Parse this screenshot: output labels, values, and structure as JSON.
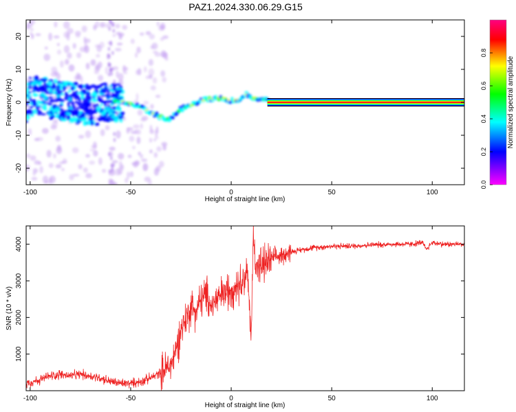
{
  "title": "PAZ1.2024.330.06.29.G15",
  "chart_data": [
    {
      "type": "heatmap",
      "xlabel": "Height of straight line (km)",
      "ylabel": "Frequency (Hz)",
      "xlim": [
        -102,
        116
      ],
      "ylim": [
        -25,
        25
      ],
      "xticks": [
        -100,
        -50,
        0,
        50,
        100
      ],
      "yticks": [
        -20,
        -10,
        0,
        10,
        20
      ],
      "colorbar": {
        "label": "Normalized spectral amplitude",
        "ticks": [
          "0.0",
          "0.2",
          "0.4",
          "0.6",
          "0.8"
        ],
        "range": [
          0,
          1
        ],
        "colors": [
          "#ff00ff",
          "#0000ff",
          "#00ffff",
          "#00ff00",
          "#ffff00",
          "#ff0000",
          "#ff0080"
        ]
      },
      "ridge": {
        "x": [
          -100,
          -90,
          -80,
          -70,
          -60,
          -55,
          -50,
          -45,
          -40,
          -35,
          -32,
          -28,
          -25,
          -20,
          -15,
          -10,
          -5,
          0,
          5,
          8,
          10,
          15,
          20,
          30,
          50,
          70,
          90,
          100,
          116
        ],
        "y": [
          2,
          1,
          0,
          -1,
          0,
          0.5,
          -0.5,
          -1.5,
          -3,
          -4.5,
          -5.5,
          -4,
          -2,
          -1,
          0.5,
          1,
          1.5,
          0.5,
          1,
          2.5,
          1.5,
          1,
          0.5,
          0,
          0,
          0,
          0,
          0,
          0
        ]
      }
    },
    {
      "type": "line",
      "xlabel": "Height of straight line (km)",
      "ylabel": "SNR (10 * v/v)",
      "xlim": [
        -102,
        116
      ],
      "ylim": [
        0,
        4500
      ],
      "xticks": [
        -100,
        -50,
        0,
        50,
        100
      ],
      "yticks": [
        1000,
        2000,
        3000,
        4000
      ],
      "color": "#ee2222",
      "series": [
        {
          "x": [
            -102,
            -95,
            -90,
            -85,
            -80,
            -75,
            -70,
            -65,
            -60,
            -55,
            -50,
            -45,
            -40,
            -35,
            -30,
            -27,
            -25,
            -22,
            -20,
            -17,
            -15,
            -12,
            -10,
            -7,
            -5,
            -2,
            0,
            3,
            5,
            8,
            10,
            11,
            12,
            15,
            18,
            20,
            25,
            30,
            35,
            40,
            50,
            60,
            70,
            80,
            90,
            95,
            97,
            100,
            105,
            110,
            116
          ],
          "y": [
            200,
            300,
            400,
            450,
            400,
            450,
            400,
            350,
            250,
            200,
            200,
            250,
            350,
            500,
            700,
            1200,
            1700,
            2000,
            2300,
            2200,
            2500,
            2600,
            2300,
            2500,
            2600,
            2700,
            2800,
            2900,
            3000,
            3200,
            1500,
            4300,
            3500,
            3400,
            3500,
            3600,
            3700,
            3800,
            3850,
            3900,
            3950,
            3950,
            3980,
            4000,
            4000,
            4050,
            3850,
            4050,
            4000,
            4000,
            4000
          ]
        }
      ]
    }
  ]
}
